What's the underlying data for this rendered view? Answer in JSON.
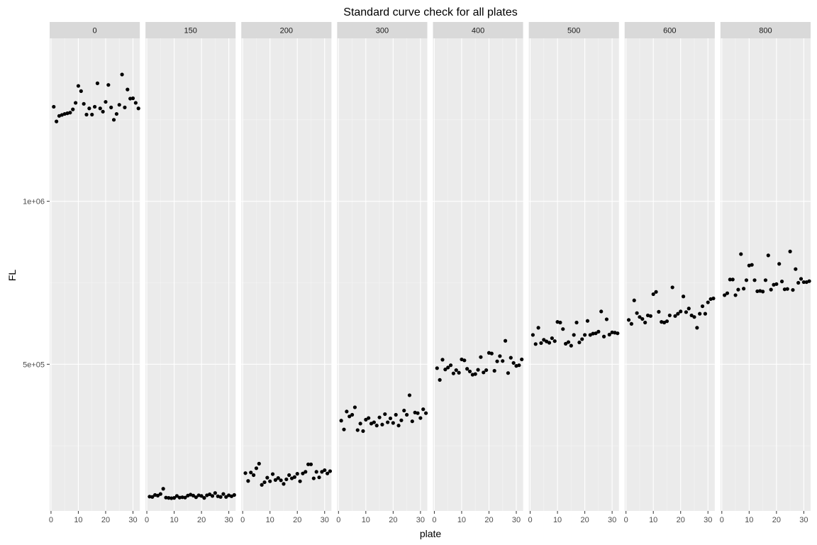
{
  "chart_data": {
    "type": "scatter",
    "title": "Standard curve check for all plates",
    "xlabel": "plate",
    "ylabel": "FL",
    "xlim": [
      -0.5,
      32.5
    ],
    "ylim": [
      50000,
      1500000
    ],
    "x_ticks": [
      0,
      10,
      20,
      30
    ],
    "y_ticks": [
      {
        "value": 500000,
        "label": "5e+05"
      },
      {
        "value": 1000000,
        "label": "1e+06"
      }
    ],
    "y_minor_ticks": [
      250000,
      750000,
      1250000
    ],
    "grid": true,
    "facets": [
      {
        "label": "0",
        "x": [
          1,
          2,
          3,
          4,
          5,
          6,
          7,
          8,
          9,
          10,
          11,
          12,
          13,
          14,
          15,
          16,
          17,
          18,
          19,
          20,
          21,
          22,
          23,
          24,
          25,
          26,
          27,
          28,
          29,
          30,
          31,
          32
        ],
        "y": [
          1290000,
          1245000,
          1262000,
          1265000,
          1268000,
          1270000,
          1272000,
          1282000,
          1302000,
          1354000,
          1338000,
          1299000,
          1266000,
          1285000,
          1266000,
          1290000,
          1362000,
          1285000,
          1275000,
          1305000,
          1357000,
          1288000,
          1250000,
          1268000,
          1296000,
          1389000,
          1288000,
          1343000,
          1315000,
          1316000,
          1302000,
          1285000
        ]
      },
      {
        "label": "150",
        "x": [
          1,
          2,
          3,
          4,
          5,
          6,
          7,
          8,
          9,
          10,
          11,
          12,
          13,
          14,
          15,
          16,
          17,
          18,
          19,
          20,
          21,
          22,
          23,
          24,
          25,
          26,
          27,
          28,
          29,
          30,
          31,
          32
        ],
        "y": [
          94000,
          93000,
          99000,
          97000,
          102000,
          118000,
          91000,
          90000,
          89000,
          90000,
          96000,
          91000,
          92000,
          91000,
          97000,
          100000,
          97000,
          92000,
          98000,
          96000,
          90000,
          98000,
          101000,
          96000,
          105000,
          95000,
          93000,
          102000,
          93000,
          98000,
          95000,
          99000
        ]
      },
      {
        "label": "200",
        "x": [
          1,
          2,
          3,
          4,
          5,
          6,
          7,
          8,
          9,
          10,
          11,
          12,
          13,
          14,
          15,
          16,
          17,
          18,
          19,
          20,
          21,
          22,
          23,
          24,
          25,
          26,
          27,
          28,
          29,
          30,
          31,
          32
        ],
        "y": [
          166000,
          142000,
          168000,
          160000,
          181000,
          195000,
          130000,
          138000,
          152000,
          141000,
          163000,
          145000,
          151000,
          144000,
          133000,
          147000,
          160000,
          150000,
          154000,
          164000,
          141000,
          165000,
          170000,
          193000,
          193000,
          150000,
          170000,
          153000,
          170000,
          175000,
          165000,
          172000
        ]
      },
      {
        "label": "300",
        "x": [
          1,
          2,
          3,
          4,
          5,
          6,
          7,
          8,
          9,
          10,
          11,
          12,
          13,
          14,
          15,
          16,
          17,
          18,
          19,
          20,
          21,
          22,
          23,
          24,
          25,
          26,
          27,
          28,
          29,
          30,
          31,
          32
        ],
        "y": [
          327000,
          300000,
          355000,
          340000,
          345000,
          368000,
          298000,
          318000,
          295000,
          330000,
          335000,
          318000,
          322000,
          312000,
          337000,
          315000,
          347000,
          322000,
          334000,
          320000,
          345000,
          312000,
          328000,
          358000,
          345000,
          405000,
          325000,
          352000,
          350000,
          335000,
          362000,
          350000
        ]
      },
      {
        "label": "400",
        "x": [
          1,
          2,
          3,
          4,
          5,
          6,
          7,
          8,
          9,
          10,
          11,
          12,
          13,
          14,
          15,
          16,
          17,
          18,
          19,
          20,
          21,
          22,
          23,
          24,
          25,
          26,
          27,
          28,
          29,
          30,
          31,
          32
        ],
        "y": [
          488000,
          452000,
          514000,
          484000,
          490000,
          497000,
          472000,
          482000,
          474000,
          515000,
          512000,
          486000,
          478000,
          468000,
          470000,
          483000,
          522000,
          475000,
          482000,
          535000,
          533000,
          480000,
          509000,
          525000,
          510000,
          572000,
          473000,
          520000,
          504000,
          495000,
          497000,
          515000
        ]
      },
      {
        "label": "500",
        "x": [
          1,
          2,
          3,
          4,
          5,
          6,
          7,
          8,
          9,
          10,
          11,
          12,
          13,
          14,
          15,
          16,
          17,
          18,
          19,
          20,
          21,
          22,
          23,
          24,
          25,
          26,
          27,
          28,
          29,
          30,
          31,
          32
        ],
        "y": [
          590000,
          562000,
          612000,
          565000,
          575000,
          570000,
          566000,
          580000,
          571000,
          630000,
          628000,
          608000,
          563000,
          568000,
          557000,
          590000,
          628000,
          567000,
          577000,
          590000,
          633000,
          590000,
          594000,
          595000,
          600000,
          662000,
          585000,
          638000,
          591000,
          598000,
          597000,
          595000
        ]
      },
      {
        "label": "600",
        "x": [
          1,
          2,
          3,
          4,
          5,
          6,
          7,
          8,
          9,
          10,
          11,
          12,
          13,
          14,
          15,
          16,
          17,
          18,
          19,
          20,
          21,
          22,
          23,
          24,
          25,
          26,
          27,
          28,
          29,
          30,
          31,
          32
        ],
        "y": [
          636000,
          624000,
          696000,
          657000,
          645000,
          639000,
          628000,
          650000,
          648000,
          715000,
          722000,
          661000,
          630000,
          628000,
          632000,
          650000,
          736000,
          648000,
          655000,
          662000,
          708000,
          660000,
          671000,
          650000,
          645000,
          612000,
          655000,
          678000,
          655000,
          690000,
          700000,
          702000
        ]
      },
      {
        "label": "800",
        "x": [
          1,
          2,
          3,
          4,
          5,
          6,
          7,
          8,
          9,
          10,
          11,
          12,
          13,
          14,
          15,
          16,
          17,
          18,
          19,
          20,
          21,
          22,
          23,
          24,
          25,
          26,
          27,
          28,
          29,
          30,
          31,
          32
        ],
        "y": [
          712000,
          718000,
          760000,
          760000,
          712000,
          729000,
          838000,
          732000,
          758000,
          803000,
          805000,
          758000,
          724000,
          725000,
          723000,
          758000,
          834000,
          729000,
          744000,
          746000,
          808000,
          754000,
          730000,
          731000,
          846000,
          728000,
          792000,
          750000,
          762000,
          752000,
          752000,
          755000
        ]
      }
    ]
  }
}
